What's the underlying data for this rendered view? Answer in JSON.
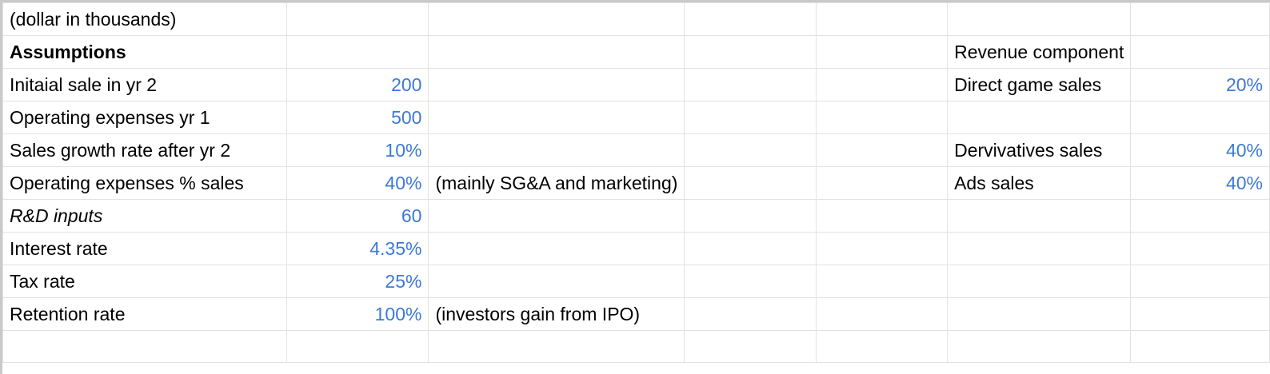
{
  "colors": {
    "input_blue": "#3c78d8",
    "gridline": "#e2e2e2",
    "text": "#000000"
  },
  "sheet": {
    "unit_note": "(dollar in thousands)",
    "assumptions_header": "Assumptions",
    "rows": [
      {
        "label": "Initaial sale in yr 2",
        "value": "200",
        "note": ""
      },
      {
        "label": "Operating expenses yr 1",
        "value": "500",
        "note": ""
      },
      {
        "label": "Sales growth rate after yr 2",
        "value": "10%",
        "note": ""
      },
      {
        "label": "Operating expenses % sales",
        "value": "40%",
        "note": "(mainly SG&A and marketing)"
      },
      {
        "label": "R&D inputs",
        "value": "60",
        "note": ""
      },
      {
        "label": "Interest rate",
        "value": "4.35%",
        "note": ""
      },
      {
        "label": "Tax rate",
        "value": "25%",
        "note": ""
      },
      {
        "label": "Retention rate",
        "value": "100%",
        "note": "(investors gain from IPO)"
      }
    ],
    "revenue": {
      "header": "Revenue component",
      "items": [
        {
          "label": "Direct game sales",
          "value": "20%"
        },
        {
          "label": "",
          "value": ""
        },
        {
          "label": "Dervivatives sales",
          "value": "40%"
        },
        {
          "label": "Ads sales",
          "value": "40%"
        }
      ]
    }
  }
}
